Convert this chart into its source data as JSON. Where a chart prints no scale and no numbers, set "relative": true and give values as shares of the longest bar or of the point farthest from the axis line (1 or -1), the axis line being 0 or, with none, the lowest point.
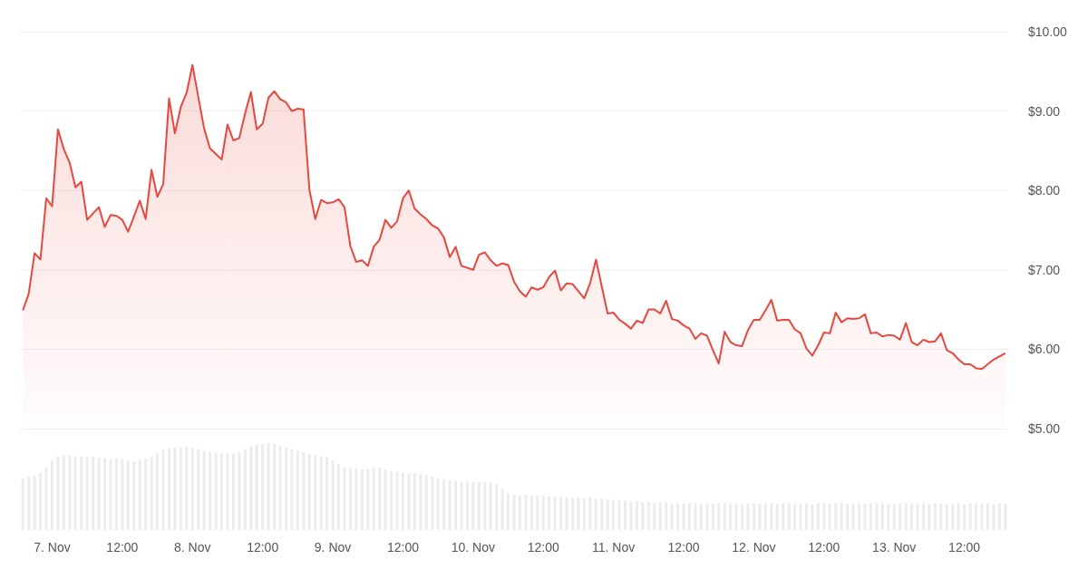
{
  "chart_data": [
    {
      "type": "area",
      "color": "#e5483e",
      "tick_labels": "y",
      "grid": "y",
      "xlim": [
        "--11-06T18:30",
        "--11-13T19:30"
      ],
      "ylim": [
        5,
        10
      ],
      "yticks": [
        {
          "value": 5,
          "label": "$5.00"
        },
        {
          "value": 6,
          "label": "$6.00"
        },
        {
          "value": 7,
          "label": "$7.00"
        },
        {
          "value": 8,
          "label": "$8.00"
        },
        {
          "value": 9,
          "label": "$9.00"
        },
        {
          "value": 10,
          "label": "$10.00"
        }
      ],
      "x": [
        "--11-06T19:00",
        "--11-06T20:00",
        "--11-06T21:00",
        "--11-06T22:00",
        "--11-06T23:00",
        "--11-07T00:00",
        "--11-07T01:00",
        "--11-07T02:00",
        "--11-07T03:00",
        "--11-07T04:00",
        "--11-07T05:00",
        "--11-07T06:00",
        "--11-07T08:00",
        "--11-07T09:00",
        "--11-07T10:00",
        "--11-07T11:00",
        "--11-07T12:00",
        "--11-07T13:00",
        "--11-07T15:00",
        "--11-07T16:00",
        "--11-07T17:00",
        "--11-07T18:00",
        "--11-07T19:00",
        "--11-07T20:00",
        "--11-07T21:00",
        "--11-07T22:00",
        "--11-07T23:00",
        "--11-08T00:00",
        "--11-08T01:00",
        "--11-08T02:00",
        "--11-08T03:00",
        "--11-08T05:00",
        "--11-08T06:00",
        "--11-08T07:00",
        "--11-08T08:00",
        "--11-08T09:00",
        "--11-08T10:00",
        "--11-08T11:00",
        "--11-08T12:00",
        "--11-08T13:00",
        "--11-08T14:00",
        "--11-08T15:00",
        "--11-08T16:00",
        "--11-08T17:00",
        "--11-08T18:00",
        "--11-08T19:00",
        "--11-08T20:00",
        "--11-08T21:00",
        "--11-08T22:00",
        "--11-08T23:00",
        "--11-09T00:00",
        "--11-09T01:00",
        "--11-09T02:00",
        "--11-09T03:00",
        "--11-09T04:00",
        "--11-09T05:00",
        "--11-09T06:00",
        "--11-09T07:00",
        "--11-09T08:00",
        "--11-09T09:00",
        "--11-09T10:00",
        "--11-09T11:00",
        "--11-09T12:00",
        "--11-09T13:00",
        "--11-09T14:00",
        "--11-09T15:00",
        "--11-09T16:00",
        "--11-09T17:00",
        "--11-09T18:00",
        "--11-09T19:00",
        "--11-09T20:00",
        "--11-09T21:00",
        "--11-09T22:00",
        "--11-10T00:00",
        "--11-10T01:00",
        "--11-10T02:00",
        "--11-10T03:00",
        "--11-10T04:00",
        "--11-10T05:00",
        "--11-10T06:00",
        "--11-10T07:00",
        "--11-10T08:00",
        "--11-10T09:00",
        "--11-10T10:00",
        "--11-10T11:00",
        "--11-10T12:00",
        "--11-10T13:00",
        "--11-10T14:00",
        "--11-10T15:00",
        "--11-10T16:00",
        "--11-10T17:00",
        "--11-10T18:00",
        "--11-10T19:00",
        "--11-10T20:00",
        "--11-10T21:00",
        "--11-10T22:00",
        "--11-10T23:00",
        "--11-11T00:00",
        "--11-11T01:00",
        "--11-11T02:00",
        "--11-11T03:00",
        "--11-11T04:00",
        "--11-11T05:00",
        "--11-11T06:00",
        "--11-11T07:00",
        "--11-11T08:00",
        "--11-11T09:00",
        "--11-11T10:00",
        "--11-11T11:00",
        "--11-11T12:00",
        "--11-11T13:00",
        "--11-11T14:00",
        "--11-11T15:00",
        "--11-11T16:00",
        "--11-11T17:00",
        "--11-11T18:00",
        "--11-11T19:00",
        "--11-11T20:00",
        "--11-11T21:00",
        "--11-11T22:00",
        "--11-11T23:00",
        "--11-12T00:00",
        "--11-12T01:00",
        "--11-12T02:00",
        "--11-12T03:00",
        "--11-12T04:00",
        "--11-12T05:00",
        "--11-12T06:00",
        "--11-12T07:00",
        "--11-12T08:00",
        "--11-12T09:00",
        "--11-12T10:00",
        "--11-12T11:00",
        "--11-12T12:00",
        "--11-12T13:00",
        "--11-12T14:00",
        "--11-12T15:00",
        "--11-12T16:00",
        "--11-12T17:00",
        "--11-12T18:00",
        "--11-12T19:00",
        "--11-12T20:00",
        "--11-12T21:00",
        "--11-12T22:00",
        "--11-12T23:00",
        "--11-13T00:00",
        "--11-13T01:00",
        "--11-13T02:00",
        "--11-13T03:00",
        "--11-13T04:00",
        "--11-13T05:00",
        "--11-13T06:00",
        "--11-13T07:00",
        "--11-13T08:00",
        "--11-13T09:00",
        "--11-13T10:00",
        "--11-13T11:00",
        "--11-13T12:00",
        "--11-13T13:00",
        "--11-13T14:00",
        "--11-13T15:00",
        "--11-13T16:00",
        "--11-13T17:00",
        "--11-13T18:00",
        "--11-13T19:00"
      ],
      "values": [
        6.49,
        6.7,
        7.21,
        7.13,
        7.9,
        7.8,
        8.77,
        8.52,
        8.35,
        8.04,
        8.11,
        7.63,
        7.79,
        7.54,
        7.69,
        7.68,
        7.63,
        7.48,
        7.87,
        7.64,
        8.26,
        7.92,
        8.08,
        9.16,
        8.72,
        9.05,
        9.23,
        9.58,
        9.18,
        8.78,
        8.53,
        8.39,
        8.83,
        8.63,
        8.66,
        8.97,
        9.24,
        8.77,
        8.84,
        9.17,
        9.25,
        9.15,
        9.11,
        9.0,
        9.03,
        9.02,
        8.01,
        7.64,
        7.88,
        7.84,
        7.85,
        7.89,
        7.79,
        7.3,
        7.1,
        7.12,
        7.05,
        7.29,
        7.38,
        7.63,
        7.53,
        7.61,
        7.9,
        8.0,
        7.77,
        7.7,
        7.64,
        7.56,
        7.52,
        7.41,
        7.16,
        7.29,
        7.05,
        7.0,
        7.19,
        7.22,
        7.12,
        7.05,
        7.08,
        7.06,
        6.85,
        6.73,
        6.66,
        6.78,
        6.75,
        6.78,
        6.91,
        6.99,
        6.74,
        6.83,
        6.82,
        6.73,
        6.64,
        6.83,
        7.13,
        6.79,
        6.45,
        6.46,
        6.37,
        6.32,
        6.26,
        6.36,
        6.33,
        6.5,
        6.5,
        6.45,
        6.61,
        6.38,
        6.36,
        6.3,
        6.26,
        6.13,
        6.2,
        6.17,
        5.99,
        5.82,
        6.22,
        6.09,
        6.05,
        6.04,
        6.24,
        6.37,
        6.37,
        6.49,
        6.62,
        6.36,
        6.37,
        6.37,
        6.25,
        6.2,
        6.01,
        5.92,
        6.05,
        6.21,
        6.2,
        6.46,
        6.34,
        6.39,
        6.38,
        6.39,
        6.44,
        6.2,
        6.21,
        6.16,
        6.18,
        6.17,
        6.12,
        6.33,
        6.09,
        6.05,
        6.12,
        6.09,
        6.1,
        6.2,
        5.99,
        5.95,
        5.87,
        5.81,
        5.81,
        5.76,
        5.75,
        5.81,
        5.87,
        5.91,
        5.95
      ]
    },
    {
      "type": "bar",
      "color": "#ececec",
      "relative": true,
      "tick_labels": "x",
      "xlim": [
        "--11-06T18:30",
        "--11-13T19:30"
      ],
      "xticks": [
        {
          "value": "--11-07T00:00",
          "label": "7. Nov"
        },
        {
          "value": "--11-07T12:00",
          "label": "12:00"
        },
        {
          "value": "--11-08T00:00",
          "label": "8. Nov"
        },
        {
          "value": "--11-08T12:00",
          "label": "12:00"
        },
        {
          "value": "--11-09T00:00",
          "label": "9. Nov"
        },
        {
          "value": "--11-09T12:00",
          "label": "12:00"
        },
        {
          "value": "--11-10T00:00",
          "label": "10. Nov"
        },
        {
          "value": "--11-10T12:00",
          "label": "12:00"
        },
        {
          "value": "--11-11T00:00",
          "label": "11. Nov"
        },
        {
          "value": "--11-11T12:00",
          "label": "12:00"
        },
        {
          "value": "--11-12T00:00",
          "label": "12. Nov"
        },
        {
          "value": "--11-12T12:00",
          "label": "12:00"
        },
        {
          "value": "--11-13T00:00",
          "label": "13. Nov"
        },
        {
          "value": "--11-13T12:00",
          "label": "12:00"
        }
      ],
      "x": [
        "--11-06T19:00",
        "--11-06T20:00",
        "--11-06T21:00",
        "--11-06T22:00",
        "--11-06T23:00",
        "--11-07T00:00",
        "--11-07T01:00",
        "--11-07T02:00",
        "--11-07T03:00",
        "--11-07T04:00",
        "--11-07T05:00",
        "--11-07T06:00",
        "--11-07T07:00",
        "--11-07T08:00",
        "--11-07T09:00",
        "--11-07T10:00",
        "--11-07T11:00",
        "--11-07T12:00",
        "--11-07T13:00",
        "--11-07T14:00",
        "--11-07T15:00",
        "--11-07T16:00",
        "--11-07T17:00",
        "--11-07T18:00",
        "--11-07T19:00",
        "--11-07T20:00",
        "--11-07T21:00",
        "--11-07T22:00",
        "--11-07T23:00",
        "--11-08T00:00",
        "--11-08T01:00",
        "--11-08T02:00",
        "--11-08T03:00",
        "--11-08T04:00",
        "--11-08T05:00",
        "--11-08T06:00",
        "--11-08T07:00",
        "--11-08T08:00",
        "--11-08T09:00",
        "--11-08T10:00",
        "--11-08T11:00",
        "--11-08T12:00",
        "--11-08T13:00",
        "--11-08T14:00",
        "--11-08T15:00",
        "--11-08T16:00",
        "--11-08T17:00",
        "--11-08T18:00",
        "--11-08T19:00",
        "--11-08T20:00",
        "--11-08T21:00",
        "--11-08T22:00",
        "--11-08T23:00",
        "--11-09T00:00",
        "--11-09T01:00",
        "--11-09T02:00",
        "--11-09T03:00",
        "--11-09T04:00",
        "--11-09T05:00",
        "--11-09T06:00",
        "--11-09T07:00",
        "--11-09T08:00",
        "--11-09T09:00",
        "--11-09T10:00",
        "--11-09T11:00",
        "--11-09T12:00",
        "--11-09T13:00",
        "--11-09T14:00",
        "--11-09T15:00",
        "--11-09T16:00",
        "--11-09T17:00",
        "--11-09T18:00",
        "--11-09T19:00",
        "--11-09T20:00",
        "--11-09T21:00",
        "--11-09T22:00",
        "--11-09T23:00",
        "--11-10T00:00",
        "--11-10T01:00",
        "--11-10T02:00",
        "--11-10T03:00",
        "--11-10T04:00",
        "--11-10T05:00",
        "--11-10T06:00",
        "--11-10T07:00",
        "--11-10T08:00",
        "--11-10T09:00",
        "--11-10T10:00",
        "--11-10T11:00",
        "--11-10T12:00",
        "--11-10T13:00",
        "--11-10T14:00",
        "--11-10T15:00",
        "--11-10T16:00",
        "--11-10T17:00",
        "--11-10T18:00",
        "--11-10T19:00",
        "--11-10T20:00",
        "--11-10T21:00",
        "--11-10T22:00",
        "--11-10T23:00",
        "--11-11T00:00",
        "--11-11T01:00",
        "--11-11T02:00",
        "--11-11T03:00",
        "--11-11T04:00",
        "--11-11T05:00",
        "--11-11T06:00",
        "--11-11T07:00",
        "--11-11T08:00",
        "--11-11T09:00",
        "--11-11T10:00",
        "--11-11T11:00",
        "--11-11T12:00",
        "--11-11T13:00",
        "--11-11T14:00",
        "--11-11T15:00",
        "--11-11T16:00",
        "--11-11T17:00",
        "--11-11T18:00",
        "--11-11T19:00",
        "--11-11T20:00",
        "--11-11T21:00",
        "--11-11T22:00",
        "--11-11T23:00",
        "--11-12T00:00",
        "--11-12T01:00",
        "--11-12T02:00",
        "--11-12T03:00",
        "--11-12T04:00",
        "--11-12T05:00",
        "--11-12T06:00",
        "--11-12T07:00",
        "--11-12T08:00",
        "--11-12T09:00",
        "--11-12T10:00",
        "--11-12T11:00",
        "--11-12T12:00",
        "--11-12T13:00",
        "--11-12T14:00",
        "--11-12T15:00",
        "--11-12T16:00",
        "--11-12T17:00",
        "--11-12T18:00",
        "--11-12T19:00",
        "--11-12T20:00",
        "--11-12T21:00",
        "--11-12T22:00",
        "--11-12T23:00",
        "--11-13T00:00",
        "--11-13T01:00",
        "--11-13T02:00",
        "--11-13T03:00",
        "--11-13T04:00",
        "--11-13T05:00",
        "--11-13T06:00",
        "--11-13T07:00",
        "--11-13T08:00",
        "--11-13T09:00",
        "--11-13T10:00",
        "--11-13T11:00",
        "--11-13T12:00",
        "--11-13T13:00",
        "--11-13T14:00",
        "--11-13T15:00",
        "--11-13T16:00",
        "--11-13T17:00",
        "--11-13T18:00",
        "--11-13T19:00"
      ],
      "values": [
        0.59,
        0.61,
        0.63,
        0.65,
        0.72,
        0.8,
        0.85,
        0.86,
        0.86,
        0.85,
        0.85,
        0.84,
        0.84,
        0.83,
        0.83,
        0.82,
        0.82,
        0.81,
        0.8,
        0.79,
        0.8,
        0.82,
        0.84,
        0.88,
        0.92,
        0.94,
        0.95,
        0.95,
        0.96,
        0.95,
        0.93,
        0.91,
        0.9,
        0.89,
        0.88,
        0.88,
        0.88,
        0.89,
        0.93,
        0.96,
        0.98,
        0.99,
        1.0,
        0.99,
        0.97,
        0.95,
        0.93,
        0.91,
        0.89,
        0.87,
        0.86,
        0.85,
        0.84,
        0.8,
        0.76,
        0.72,
        0.71,
        0.71,
        0.7,
        0.7,
        0.71,
        0.72,
        0.7,
        0.68,
        0.67,
        0.66,
        0.65,
        0.65,
        0.64,
        0.63,
        0.62,
        0.6,
        0.58,
        0.57,
        0.57,
        0.56,
        0.56,
        0.55,
        0.55,
        0.55,
        0.55,
        0.53,
        0.48,
        0.42,
        0.41,
        0.4,
        0.4,
        0.4,
        0.4,
        0.39,
        0.39,
        0.39,
        0.38,
        0.38,
        0.37,
        0.37,
        0.37,
        0.37,
        0.36,
        0.36,
        0.35,
        0.35,
        0.34,
        0.34,
        0.33,
        0.33,
        0.32,
        0.32,
        0.32,
        0.32,
        0.31,
        0.31,
        0.31,
        0.31,
        0.31,
        0.31,
        0.3,
        0.31,
        0.3,
        0.31,
        0.31,
        0.3,
        0.31,
        0.3,
        0.31,
        0.31,
        0.3,
        0.31,
        0.31,
        0.3,
        0.31,
        0.31,
        0.3,
        0.31,
        0.31,
        0.3,
        0.31,
        0.31,
        0.3,
        0.31,
        0.31,
        0.3,
        0.31,
        0.31,
        0.3,
        0.31,
        0.31,
        0.31,
        0.3,
        0.3,
        0.31,
        0.31,
        0.3,
        0.31,
        0.31,
        0.3,
        0.31,
        0.31,
        0.3,
        0.31,
        0.31,
        0.3,
        0.31,
        0.31,
        0.3,
        0.31,
        0.3,
        0.31,
        0.3
      ]
    }
  ]
}
